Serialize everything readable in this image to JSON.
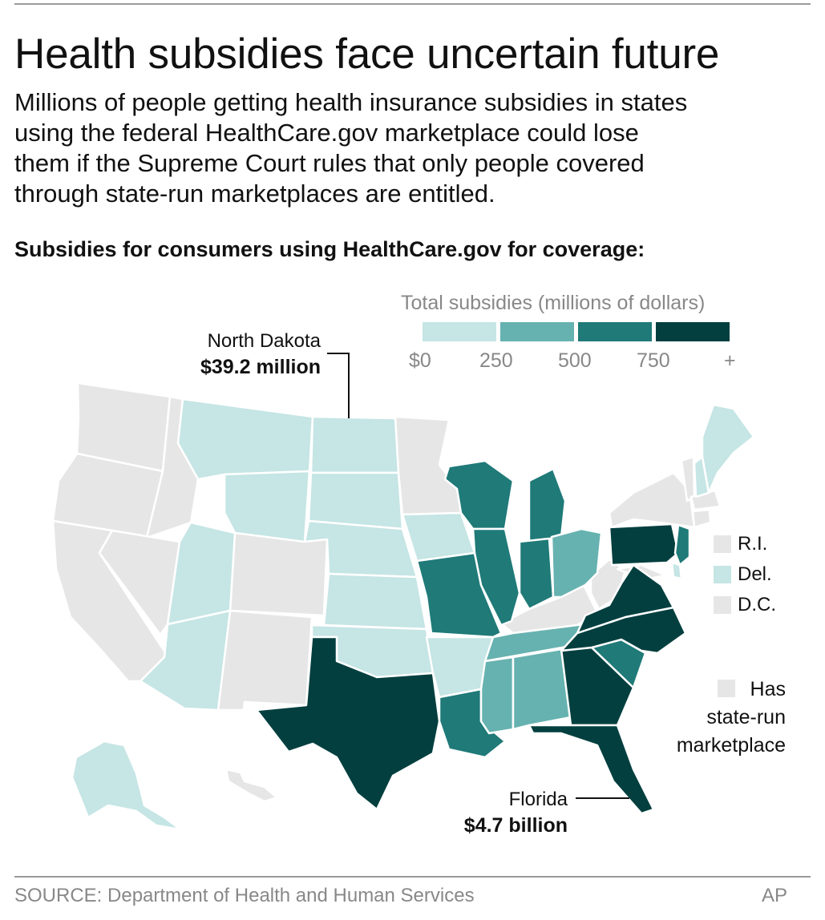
{
  "title": "Health subsidies face uncertain future",
  "intro_lines": [
    "Millions of people getting health insurance subsidies in states",
    "using the federal HealthCare.gov marketplace could lose",
    "them if the Supreme Court rules that only people covered",
    "through state-run marketplaces are entitled."
  ],
  "subhead": "Subsidies for consumers using HealthCare.gov for coverage:",
  "legend": {
    "title": "Total subsidies (millions of dollars)",
    "ticks": [
      "$0",
      "250",
      "500",
      "750",
      "+"
    ],
    "colors": [
      "#c6e5e5",
      "#66b2b0",
      "#1f7a78",
      "#033f3f"
    ],
    "state_run_color": "#e6e6e6"
  },
  "callouts": {
    "north_dakota": {
      "name": "North Dakota",
      "value": "$39.2 million"
    },
    "florida": {
      "name": "Florida",
      "value": "$4.7 billion"
    }
  },
  "small_states": [
    {
      "label": "R.I.",
      "color": "#e6e6e6"
    },
    {
      "label": "Del.",
      "color": "#c6e5e5"
    },
    {
      "label": "D.C.",
      "color": "#e6e6e6"
    }
  ],
  "state_run_note": [
    "Has",
    "state-run",
    "marketplace"
  ],
  "source": "SOURCE: Department of Health and Human Services",
  "credit": "AP"
}
